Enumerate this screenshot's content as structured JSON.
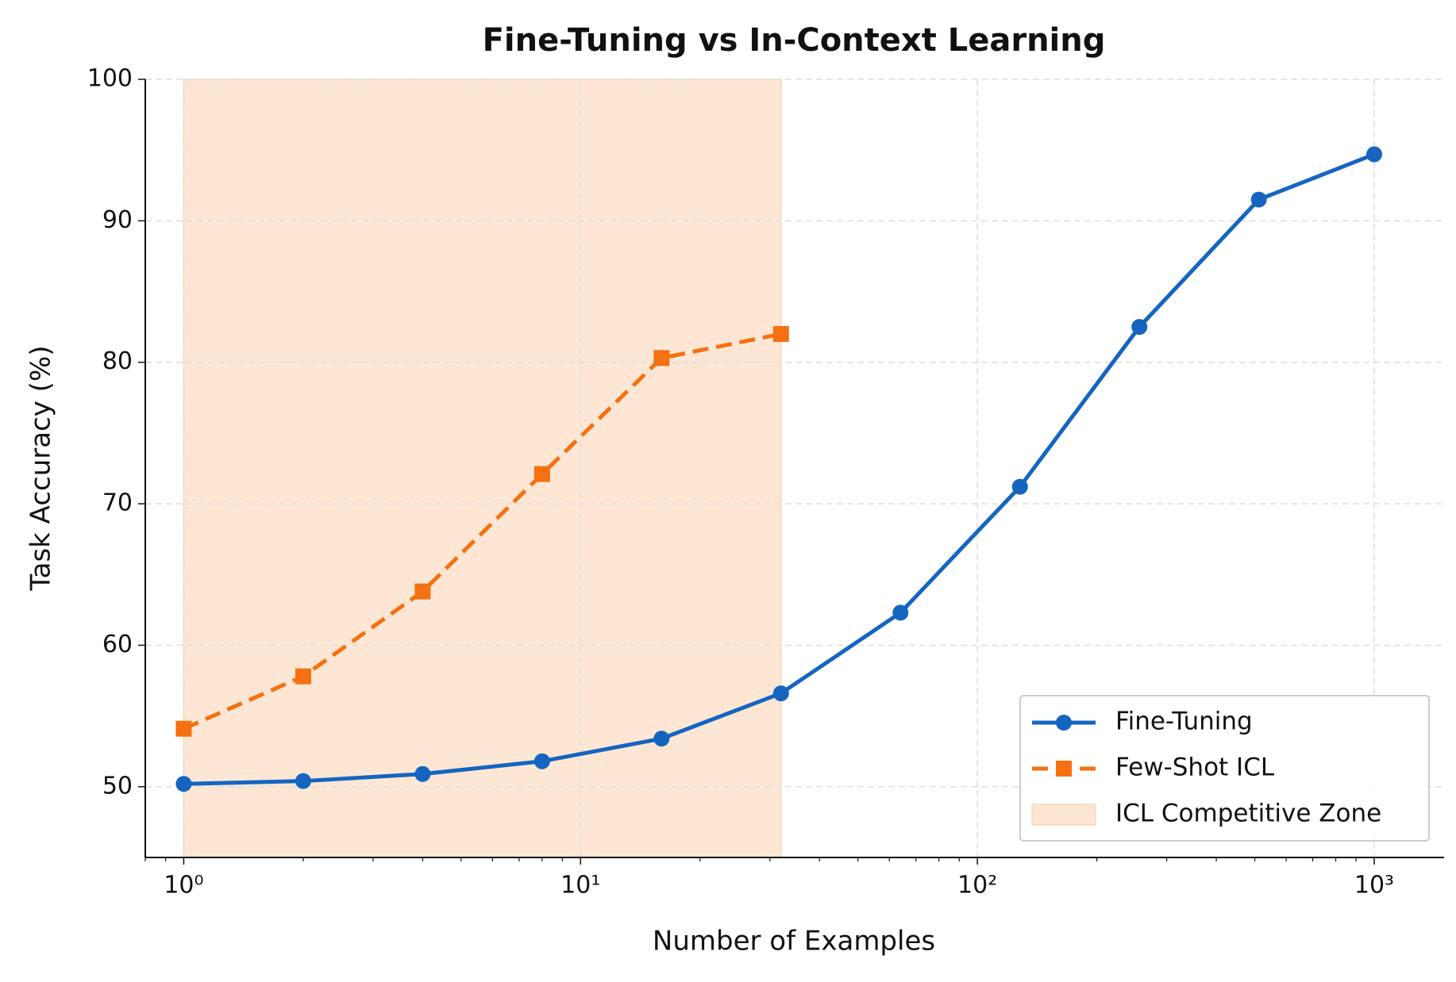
{
  "chart_data": {
    "type": "line",
    "title": "Fine-Tuning vs In-Context Learning",
    "xlabel": "Number of Examples",
    "ylabel": "Task Accuracy (%)",
    "x": [
      1,
      2,
      4,
      8,
      16,
      32,
      64,
      128,
      256,
      512,
      1000
    ],
    "series": [
      {
        "name": "Fine-Tuning",
        "color": "#1565c0",
        "marker": "circle",
        "dashed": false,
        "values": [
          50.2,
          50.4,
          50.9,
          51.8,
          53.4,
          56.6,
          62.3,
          71.2,
          82.5,
          91.5,
          94.7
        ]
      },
      {
        "name": "Few-Shot ICL",
        "color": "#f57010",
        "marker": "square",
        "dashed": true,
        "values": [
          54.1,
          57.8,
          63.8,
          72.1,
          80.3,
          82.0,
          null,
          null,
          null,
          null,
          null
        ]
      }
    ],
    "shade": {
      "name": "ICL Competitive Zone",
      "color": "#fde7d4",
      "x": [
        1,
        32
      ]
    },
    "xscale": "log",
    "xlim": [
      0.8,
      1500
    ],
    "xticks": [
      {
        "value": 1,
        "label": "10⁰"
      },
      {
        "value": 10,
        "label": "10¹"
      },
      {
        "value": 100,
        "label": "10²"
      },
      {
        "value": 1000,
        "label": "10³"
      }
    ],
    "xminorticks": [
      0.8,
      0.9,
      2,
      3,
      4,
      5,
      6,
      7,
      8,
      9,
      20,
      30,
      40,
      50,
      60,
      70,
      80,
      90,
      200,
      300,
      400,
      500,
      600,
      700,
      800,
      900
    ],
    "ylim": [
      45,
      100
    ],
    "yticks": [
      50,
      60,
      70,
      80,
      90,
      100
    ],
    "grid": true,
    "legend": "lower right"
  }
}
